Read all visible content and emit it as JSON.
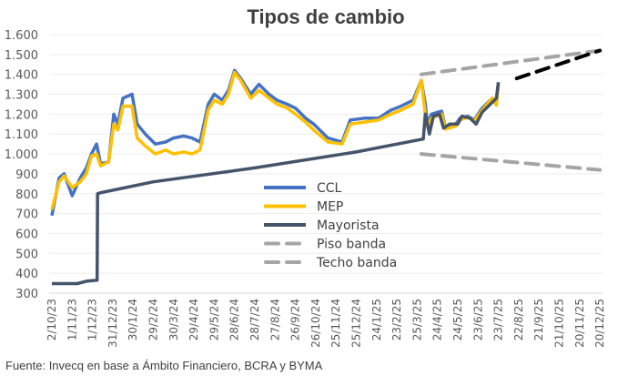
{
  "chart_data": {
    "type": "line",
    "title": "Tipos de cambio",
    "xlabel": "",
    "ylabel": "",
    "ylim": [
      300,
      1600
    ],
    "yticks": [
      300,
      400,
      500,
      600,
      700,
      800,
      900,
      1000,
      1100,
      1200,
      1300,
      1400,
      1500,
      1600
    ],
    "ytick_labels": [
      "300",
      "400",
      "500",
      "600",
      "700",
      "800",
      "900",
      "1.000",
      "1.100",
      "1.200",
      "1.300",
      "1.400",
      "1.500",
      "1.600"
    ],
    "x_unit": "tick index (0 = first date label, each step ≈ 30 days)",
    "xtick_labels": [
      "2/10/23",
      "1/11/23",
      "1/12/23",
      "31/12/23",
      "30/1/24",
      "29/2/24",
      "30/3/24",
      "29/4/24",
      "29/5/24",
      "28/6/24",
      "28/7/24",
      "27/8/24",
      "26/9/24",
      "26/10/24",
      "25/11/24",
      "25/12/24",
      "24/1/25",
      "23/2/25",
      "25/3/25",
      "24/4/25",
      "24/5/25",
      "23/6/25",
      "23/7/25",
      "22/8/25",
      "21/9/25",
      "21/10/25",
      "20/11/25",
      "20/12/25"
    ],
    "grid": true,
    "legend_position": "center",
    "series": [
      {
        "name": "CCL",
        "color": "#4472C4",
        "dash": false,
        "in_legend": true,
        "x": [
          0,
          0.36,
          0.6,
          1.0,
          1.4,
          1.7,
          1.95,
          2.2,
          2.4,
          2.8,
          3.05,
          3.25,
          3.5,
          3.95,
          4.2,
          4.6,
          5.1,
          5.6,
          6.0,
          6.5,
          6.9,
          7.3,
          7.7,
          8.0,
          8.4,
          8.7,
          9.0,
          9.3,
          9.8,
          10.2,
          10.7,
          11.1,
          11.6,
          12.0,
          12.5,
          12.9,
          13.6,
          14.3,
          14.7,
          15.4,
          16.1,
          16.7,
          17.2,
          17.8,
          18.2,
          18.4,
          18.5,
          18.7,
          19.2,
          19.4,
          19.9,
          20.1,
          20.5,
          20.8,
          21.2,
          21.7,
          21.9,
          22.0
        ],
        "y": [
          690,
          880,
          900,
          790,
          880,
          930,
          1000,
          1050,
          950,
          960,
          1200,
          1150,
          1280,
          1300,
          1150,
          1100,
          1050,
          1060,
          1080,
          1090,
          1080,
          1060,
          1250,
          1300,
          1270,
          1320,
          1420,
          1380,
          1300,
          1350,
          1300,
          1270,
          1250,
          1230,
          1180,
          1150,
          1080,
          1060,
          1170,
          1180,
          1180,
          1220,
          1240,
          1270,
          1370,
          1250,
          1150,
          1200,
          1215,
          1130,
          1150,
          1180,
          1190,
          1170,
          1230,
          1280,
          1260,
          1360
        ]
      },
      {
        "name": "MEP",
        "color": "#FFC000",
        "dash": false,
        "in_legend": true,
        "x": [
          0,
          0.36,
          0.6,
          1.0,
          1.4,
          1.7,
          1.95,
          2.2,
          2.4,
          2.8,
          3.05,
          3.25,
          3.5,
          3.95,
          4.2,
          4.6,
          5.1,
          5.6,
          6.0,
          6.5,
          6.9,
          7.3,
          7.7,
          8.0,
          8.4,
          8.7,
          9.0,
          9.3,
          9.8,
          10.2,
          10.7,
          11.1,
          11.6,
          12.0,
          12.5,
          12.9,
          13.6,
          14.3,
          14.7,
          15.4,
          16.1,
          16.7,
          17.2,
          17.8,
          18.2,
          18.4,
          18.5,
          18.7,
          19.2,
          19.4,
          19.9,
          20.1,
          20.5,
          20.8,
          21.2,
          21.7,
          21.9,
          22.0
        ],
        "y": [
          720,
          860,
          890,
          830,
          860,
          900,
          990,
          1000,
          940,
          960,
          1150,
          1120,
          1240,
          1240,
          1080,
          1040,
          1000,
          1020,
          1000,
          1010,
          1000,
          1020,
          1220,
          1270,
          1250,
          1300,
          1410,
          1370,
          1280,
          1320,
          1280,
          1250,
          1230,
          1200,
          1160,
          1120,
          1060,
          1050,
          1150,
          1160,
          1170,
          1200,
          1220,
          1250,
          1370,
          1200,
          1140,
          1180,
          1200,
          1125,
          1140,
          1170,
          1185,
          1165,
          1220,
          1280,
          1245,
          1350
        ]
      },
      {
        "name": "Mayorista",
        "color": "#44546A",
        "dash": false,
        "in_legend": true,
        "x": [
          0,
          1.25,
          1.7,
          2.23,
          2.25,
          2.4,
          5,
          10,
          15,
          18.3,
          18.4,
          18.6,
          18.8,
          19.1,
          19.3,
          19.6,
          20,
          20.2,
          20.6,
          20.9,
          21.2,
          21.6,
          21.9,
          22.0
        ],
        "y": [
          348,
          348,
          360,
          365,
          800,
          805,
          860,
          930,
          1010,
          1075,
          1200,
          1100,
          1190,
          1200,
          1130,
          1150,
          1150,
          1190,
          1180,
          1150,
          1210,
          1250,
          1280,
          1360
        ]
      },
      {
        "name": "Piso banda",
        "color": "#A5A5A5",
        "dash": true,
        "in_legend": true,
        "x": [
          18.2,
          27
        ],
        "y": [
          1000,
          920
        ]
      },
      {
        "name": "Techo banda",
        "color": "#A5A5A5",
        "dash": true,
        "in_legend": true,
        "x": [
          18.2,
          27
        ],
        "y": [
          1400,
          1520
        ]
      },
      {
        "name": "",
        "color": "#000000",
        "dash": true,
        "in_legend": false,
        "x": [
          22.9,
          27
        ],
        "y": [
          1380,
          1520
        ]
      }
    ],
    "source": "Fuente: Invecq en base a Ámbito Financiero, BCRA y BYMA"
  }
}
